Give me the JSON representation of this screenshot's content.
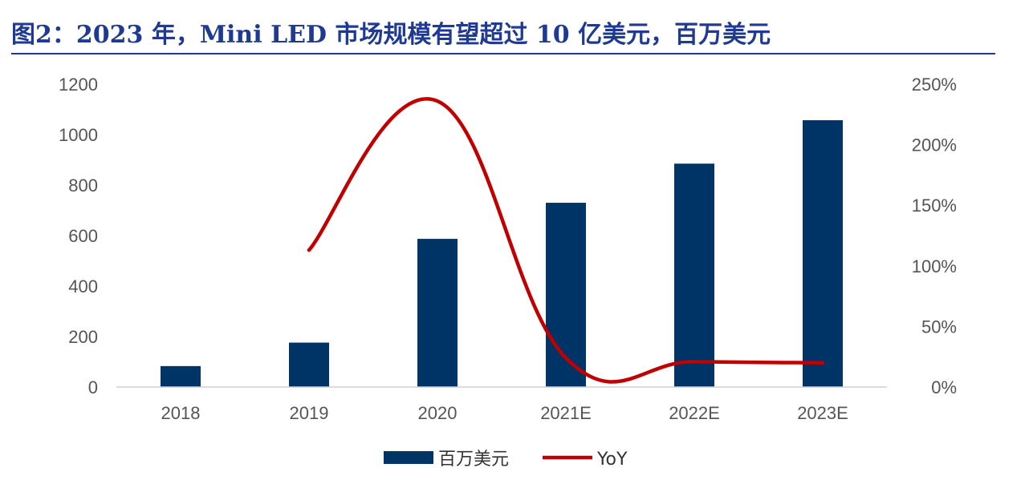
{
  "title": "图2：2023 年，Mini LED 市场规模有望超过 10 亿美元，百万美元",
  "chart_data": {
    "type": "bar",
    "categories": [
      "2018",
      "2019",
      "2020",
      "2021E",
      "2022E",
      "2023E"
    ],
    "series": [
      {
        "name": "百万美元",
        "type": "bar",
        "axis": "left",
        "color": "#003366",
        "values": [
          83,
          176,
          587,
          730,
          885,
          1057
        ]
      },
      {
        "name": "YoY",
        "type": "line",
        "axis": "right",
        "color": "#c00000",
        "values": [
          null,
          1.13,
          2.36,
          0.24,
          0.21,
          0.2
        ]
      }
    ],
    "y_left": {
      "min": 0,
      "max": 1200,
      "ticks": [
        0,
        200,
        400,
        600,
        800,
        1000,
        1200
      ],
      "tick_labels": [
        "0",
        "200",
        "400",
        "600",
        "800",
        "1000",
        "1200"
      ]
    },
    "y_right": {
      "min": 0,
      "max": 2.5,
      "ticks": [
        0,
        0.5,
        1.0,
        1.5,
        2.0,
        2.5
      ],
      "tick_labels": [
        "0%",
        "50%",
        "100%",
        "150%",
        "200%",
        "250%"
      ]
    },
    "legend": {
      "position": "bottom-center",
      "items": [
        "百万美元",
        "YoY"
      ]
    },
    "grid": false
  }
}
